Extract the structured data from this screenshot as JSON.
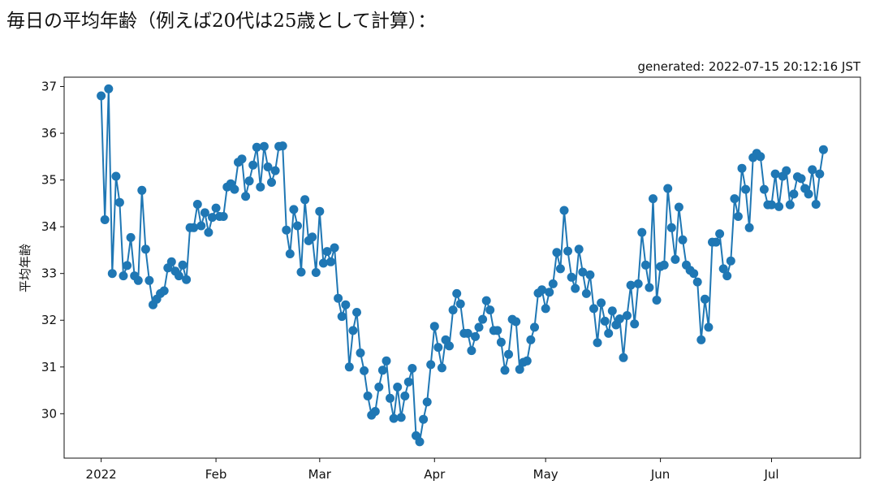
{
  "page": {
    "heading": "毎日の平均年齢（例えば20代は25歳として計算）：",
    "generated": "generated: 2022-07-15 20:12:16 JST"
  },
  "chart_data": {
    "type": "line",
    "title": "",
    "xlabel": "",
    "ylabel": "平均年齢",
    "series_color": "#1f77b4",
    "marker": "circle",
    "grid": false,
    "legend": "none",
    "x_start": "2022-01-01",
    "x_end": "2022-07-14",
    "xlim": [
      "2021-12-22",
      "2022-07-25"
    ],
    "ylim": [
      29.05,
      37.2
    ],
    "yticks": [
      30,
      31,
      32,
      33,
      34,
      35,
      36,
      37
    ],
    "xticks": [
      {
        "date": "2022-01-01",
        "label": "2022"
      },
      {
        "date": "2022-02-01",
        "label": "Feb"
      },
      {
        "date": "2022-03-01",
        "label": "Mar"
      },
      {
        "date": "2022-04-01",
        "label": "Apr"
      },
      {
        "date": "2022-05-01",
        "label": "May"
      },
      {
        "date": "2022-06-01",
        "label": "Jun"
      },
      {
        "date": "2022-07-01",
        "label": "Jul"
      }
    ],
    "values": [
      36.8,
      34.15,
      36.95,
      33.0,
      35.08,
      34.52,
      32.95,
      33.17,
      33.77,
      32.95,
      32.85,
      34.78,
      33.52,
      32.85,
      32.33,
      32.45,
      32.57,
      32.63,
      33.12,
      33.25,
      33.05,
      32.95,
      33.18,
      32.87,
      33.98,
      33.98,
      34.48,
      34.02,
      34.3,
      33.88,
      34.2,
      34.4,
      34.22,
      34.22,
      34.85,
      34.92,
      34.8,
      35.38,
      35.45,
      34.65,
      34.98,
      35.32,
      35.7,
      34.85,
      35.72,
      35.28,
      34.95,
      35.2,
      35.72,
      35.73,
      33.93,
      33.42,
      34.37,
      34.02,
      33.03,
      34.58,
      33.7,
      33.78,
      33.02,
      34.33,
      33.22,
      33.47,
      33.25,
      33.55,
      32.47,
      32.08,
      32.33,
      31.0,
      31.78,
      32.17,
      31.3,
      30.92,
      30.38,
      29.97,
      30.05,
      30.57,
      30.93,
      31.13,
      30.33,
      29.9,
      30.57,
      29.92,
      30.38,
      30.68,
      30.97,
      29.53,
      29.4,
      29.88,
      30.25,
      31.05,
      31.87,
      31.42,
      30.98,
      31.58,
      31.45,
      32.22,
      32.57,
      32.35,
      31.72,
      31.72,
      31.35,
      31.65,
      31.85,
      32.02,
      32.42,
      32.22,
      31.78,
      31.78,
      31.53,
      30.93,
      31.27,
      32.02,
      31.97,
      30.95,
      31.1,
      31.13,
      31.58,
      31.85,
      32.58,
      32.65,
      32.25,
      32.6,
      32.78,
      33.45,
      33.1,
      34.35,
      33.48,
      32.92,
      32.68,
      33.52,
      33.03,
      32.57,
      32.97,
      32.25,
      31.52,
      32.37,
      31.98,
      31.72,
      32.2,
      31.9,
      32.03,
      31.2,
      32.1,
      32.75,
      31.92,
      32.78,
      33.88,
      33.18,
      32.7,
      34.6,
      32.43,
      33.15,
      33.18,
      34.82,
      33.98,
      33.3,
      34.42,
      33.72,
      33.18,
      33.07,
      33.0,
      32.82,
      31.58,
      32.45,
      31.85,
      33.67,
      33.67,
      33.85,
      33.1,
      32.95,
      33.27,
      34.6,
      34.22,
      35.25,
      34.8,
      33.98,
      35.48,
      35.57,
      35.5,
      34.8,
      34.47,
      34.47,
      35.13,
      34.43,
      35.08,
      35.2,
      34.47,
      34.7,
      35.07,
      35.03,
      34.82,
      34.7,
      35.22,
      34.48,
      35.13,
      35.65
    ]
  }
}
